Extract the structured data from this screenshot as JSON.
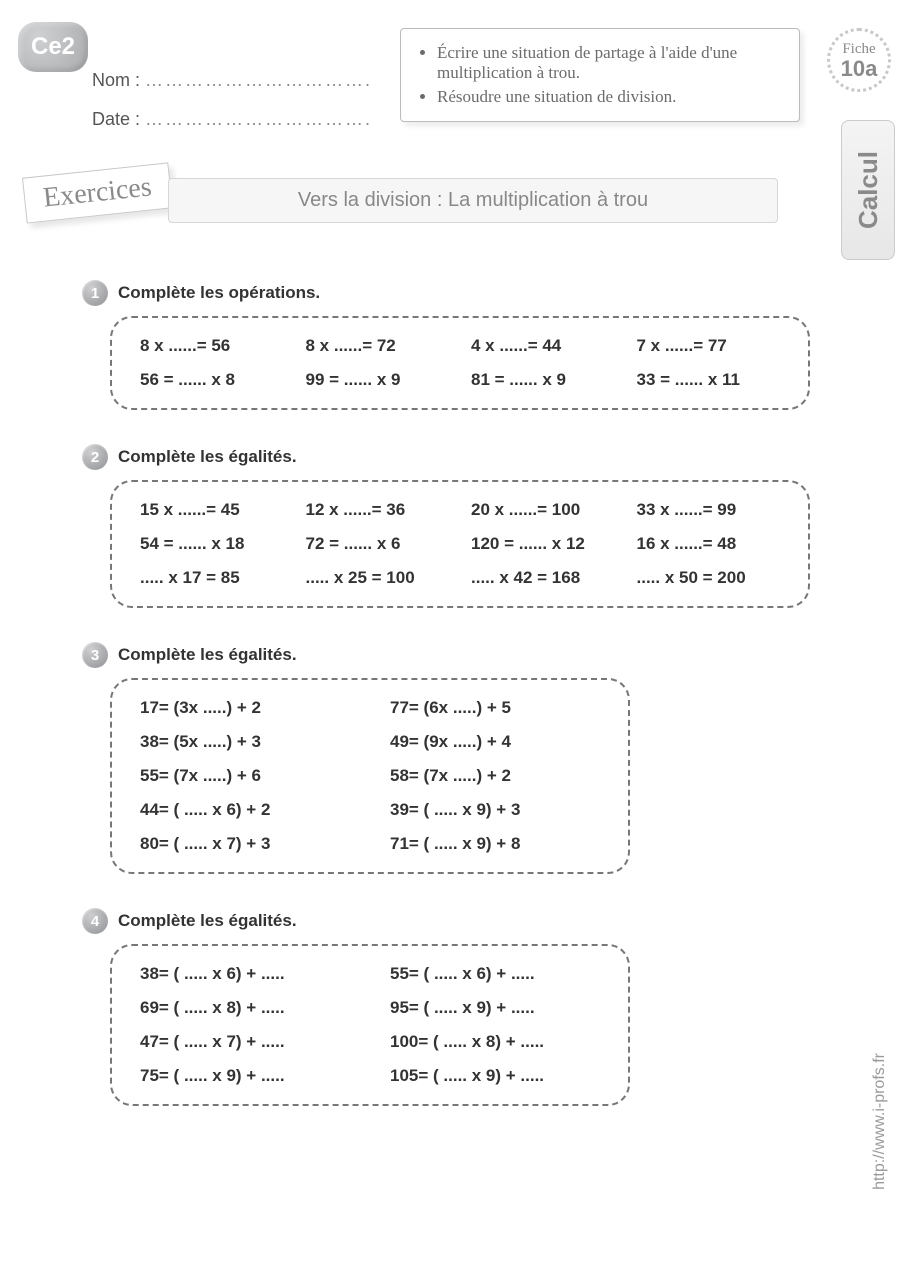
{
  "header": {
    "level_badge": "Ce2",
    "name_label": "Nom :",
    "date_label": "Date :",
    "dots": "…………………………….",
    "fiche_label": "Fiche",
    "fiche_num": "10a",
    "side_tab": "Calcul",
    "side_url": "http://www.i-profs.fr"
  },
  "objectives": {
    "items": [
      "Écrire une situation de partage à l'aide d'une multiplication à trou.",
      "Résoudre une situation de division."
    ]
  },
  "title": {
    "exercices_label": "Exercices",
    "bar": "Vers la division : La multiplication à trou"
  },
  "ex1": {
    "num": "1",
    "instr": "Complète les opérations.",
    "rows": [
      [
        "8 x ......= 56",
        "8 x ......= 72",
        "4 x ......= 44",
        "7 x ......= 77"
      ],
      [
        "56 = ...... x 8",
        "99 = ...... x 9",
        "81 = ...... x 9",
        "33 = ...... x 11"
      ]
    ]
  },
  "ex2": {
    "num": "2",
    "instr": "Complète les égalités.",
    "rows": [
      [
        "15 x ......= 45",
        "12 x ......= 36",
        "20 x ......= 100",
        "33 x ......= 99"
      ],
      [
        "54 = ...... x 18",
        "72 = ...... x 6",
        "120 = ...... x 12",
        "16 x ......= 48"
      ],
      [
        "..... x 17 = 85",
        "..... x 25 = 100",
        "..... x 42 = 168",
        "..... x 50 = 200"
      ]
    ]
  },
  "ex3": {
    "num": "3",
    "instr": "Complète les égalités.",
    "rows": [
      [
        "17= (3x .....) + 2",
        "77= (6x .....) + 5"
      ],
      [
        "38= (5x .....) + 3",
        "49= (9x .....) + 4"
      ],
      [
        "55= (7x .....) + 6",
        "58= (7x .....) + 2"
      ],
      [
        "44= ( ..... x 6) + 2",
        "39= ( ..... x 9) + 3"
      ],
      [
        "80= ( ..... x 7) + 3",
        "71= ( ..... x 9) + 8"
      ]
    ]
  },
  "ex4": {
    "num": "4",
    "instr": "Complète les égalités.",
    "rows": [
      [
        "38= ( ..... x 6) + .....",
        "55= ( ..... x 6) + ....."
      ],
      [
        "69= ( ..... x 8) + .....",
        "95= ( ..... x 9) + ....."
      ],
      [
        "47= ( ..... x 7) + .....",
        "100= ( ..... x 8) + ....."
      ],
      [
        "75= ( ..... x 9) + .....",
        "105= ( ..... x 9) + ....."
      ]
    ]
  }
}
